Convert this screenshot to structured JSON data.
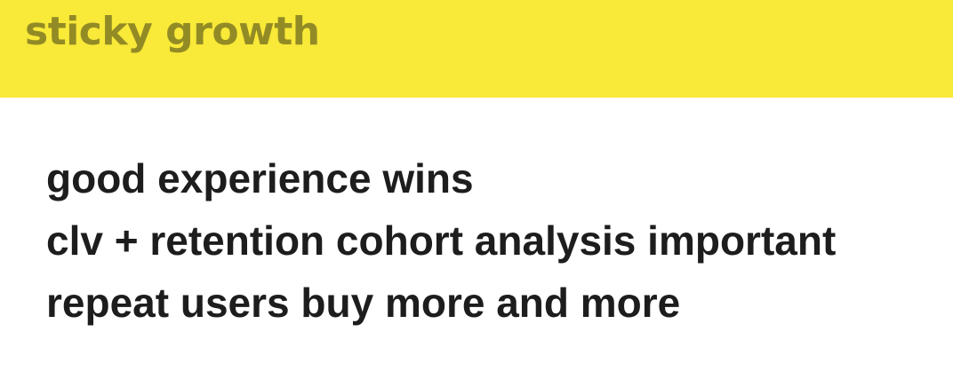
{
  "slide": {
    "title": "sticky growth",
    "bullets": [
      "good experience wins",
      "clv + retention cohort analysis important",
      "repeat users buy more and more"
    ]
  },
  "colors": {
    "title_bar": "#f9e938",
    "title_text": "#928b25",
    "body_text": "#1d1d1d",
    "background": "#ffffff"
  }
}
